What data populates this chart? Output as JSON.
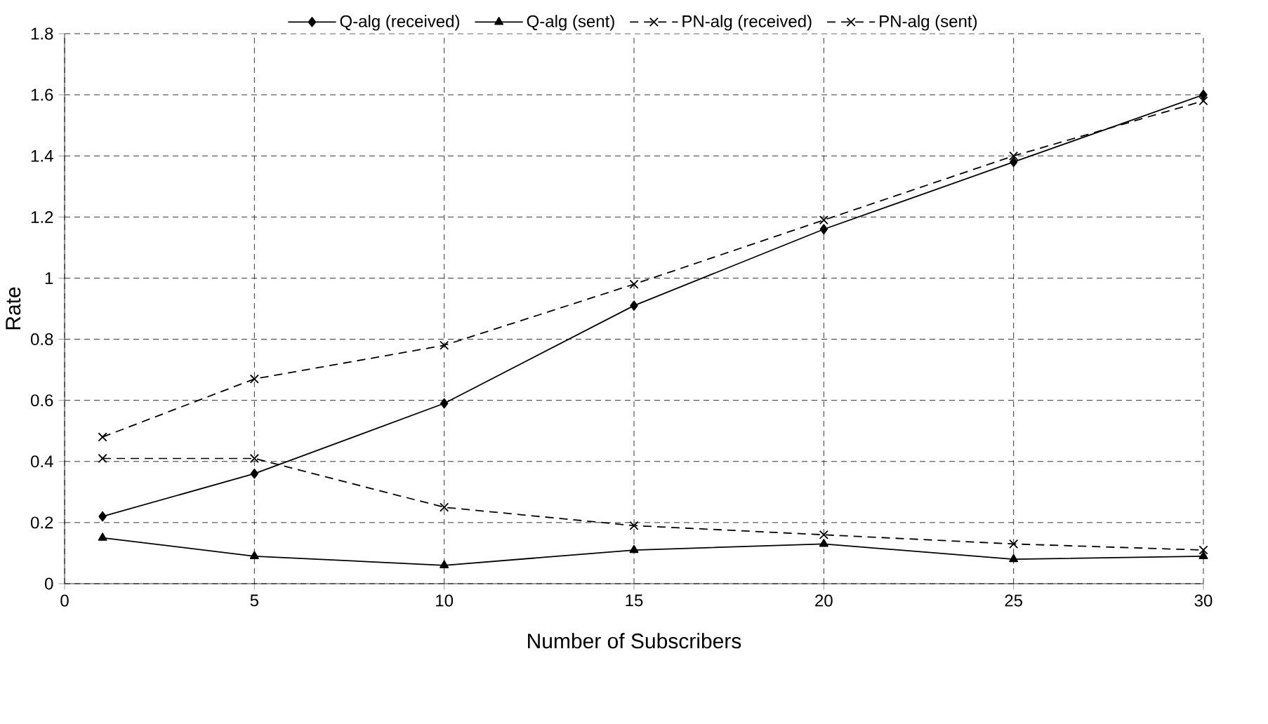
{
  "chart_data": {
    "type": "line",
    "xlabel": "Number of Subscribers",
    "ylabel": "Rate",
    "x": [
      1,
      5,
      10,
      15,
      20,
      25,
      30
    ],
    "series": [
      {
        "name": "Q-alg (received)",
        "color": "#000000",
        "marker": "diamond",
        "line_style": "solid",
        "values": [
          0.22,
          0.36,
          0.59,
          0.91,
          1.16,
          1.38,
          1.6
        ]
      },
      {
        "name": "Q-alg (sent)",
        "color": "#000000",
        "marker": "triangle",
        "line_style": "solid",
        "values": [
          0.15,
          0.09,
          0.06,
          0.11,
          0.13,
          0.08,
          0.09
        ]
      },
      {
        "name": "PN-alg (received)",
        "color": "#000000",
        "marker": "cross",
        "line_style": "dashed",
        "values": [
          0.48,
          0.67,
          0.78,
          0.98,
          1.19,
          1.4,
          1.58
        ]
      },
      {
        "name": "PN-alg (sent)",
        "color": "#000000",
        "marker": "cross",
        "line_style": "dashed",
        "values": [
          0.41,
          0.41,
          0.25,
          0.19,
          0.16,
          0.13,
          0.11
        ]
      }
    ],
    "xlim": [
      0,
      30
    ],
    "ylim": [
      0,
      1.8
    ],
    "xticks": [
      0,
      5,
      10,
      15,
      20,
      25,
      30
    ],
    "yticks": [
      0,
      0.2,
      0.4,
      0.6,
      0.8,
      1,
      1.2,
      1.4,
      1.6,
      1.8
    ],
    "grid": true,
    "legend": "top"
  }
}
